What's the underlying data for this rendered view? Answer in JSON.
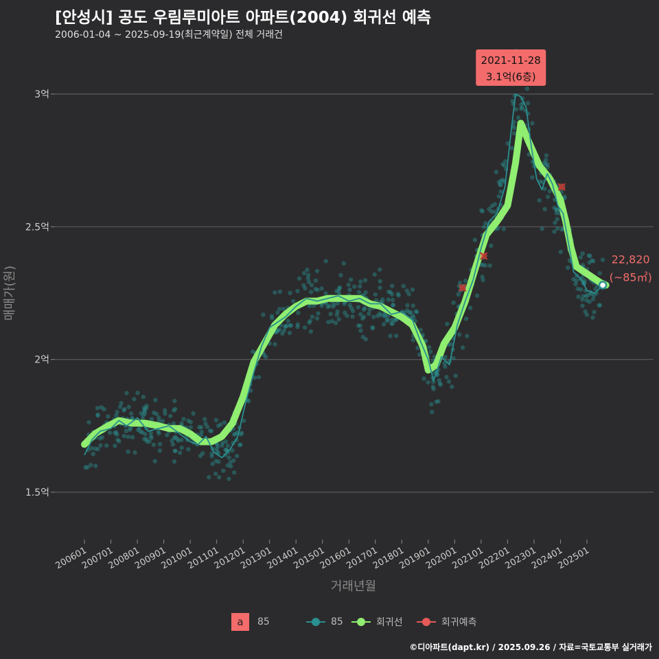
{
  "header": {
    "title": "[안성시] 공도 우림루미아트 아파트(2004) 회귀선 예측",
    "subtitle": "2006-01-04 ~ 2025-09-19(최근계약일) 전체 거래건"
  },
  "footer": "©디아파트(dapt.kr) / 2025.09.26 / 자료=국토교통부 실거래가",
  "legend": {
    "fill_label": "a",
    "fill_text": "85",
    "items": [
      {
        "label": "85",
        "color": "#2a8f8f"
      },
      {
        "label": "회귀선",
        "color": "#90ee70"
      },
      {
        "label": "회귀예측",
        "color": "#e85a5a"
      }
    ]
  },
  "chart_data": {
    "type": "scatter",
    "title": "[안성시] 공도 우림루미아트 아파트(2004) 회귀선 예측",
    "xlabel": "거래년월",
    "ylabel": "매매가(원)",
    "x_ticks": [
      "200601",
      "200701",
      "200801",
      "200901",
      "201001",
      "201101",
      "201201",
      "201301",
      "201401",
      "201501",
      "201601",
      "201701",
      "201801",
      "201901",
      "202001",
      "202101",
      "202201",
      "202301",
      "202401",
      "202501"
    ],
    "y_ticks": [
      {
        "value": 1.5,
        "label": "1.5억"
      },
      {
        "value": 2.0,
        "label": "2억"
      },
      {
        "value": 2.5,
        "label": "2.5억"
      },
      {
        "value": 3.0,
        "label": "3억"
      }
    ],
    "xlim": [
      2005.75,
      2025.95
    ],
    "ylim": [
      1.3,
      3.2
    ],
    "grid": "horizontal",
    "legend_position": "bottom",
    "series": [
      {
        "name": "회귀선",
        "color": "#90ee70",
        "points": [
          [
            2006.0,
            1.68
          ],
          [
            2006.4,
            1.72
          ],
          [
            2006.9,
            1.75
          ],
          [
            2007.3,
            1.77
          ],
          [
            2007.8,
            1.76
          ],
          [
            2008.3,
            1.76
          ],
          [
            2008.8,
            1.75
          ],
          [
            2009.2,
            1.74
          ],
          [
            2009.6,
            1.74
          ],
          [
            2010.0,
            1.72
          ],
          [
            2010.4,
            1.69
          ],
          [
            2010.8,
            1.69
          ],
          [
            2011.2,
            1.71
          ],
          [
            2011.6,
            1.76
          ],
          [
            2012.0,
            1.86
          ],
          [
            2012.4,
            1.99
          ],
          [
            2012.8,
            2.06
          ],
          [
            2013.2,
            2.13
          ],
          [
            2013.6,
            2.17
          ],
          [
            2014.0,
            2.2
          ],
          [
            2014.4,
            2.22
          ],
          [
            2014.8,
            2.22
          ],
          [
            2015.2,
            2.23
          ],
          [
            2015.6,
            2.23
          ],
          [
            2016.0,
            2.23
          ],
          [
            2016.4,
            2.23
          ],
          [
            2016.8,
            2.21
          ],
          [
            2017.2,
            2.2
          ],
          [
            2017.6,
            2.18
          ],
          [
            2018.0,
            2.16
          ],
          [
            2018.4,
            2.13
          ],
          [
            2018.8,
            2.05
          ],
          [
            2019.0,
            1.96
          ],
          [
            2019.3,
            1.98
          ],
          [
            2019.6,
            2.06
          ],
          [
            2020.0,
            2.12
          ],
          [
            2020.4,
            2.22
          ],
          [
            2020.8,
            2.35
          ],
          [
            2021.2,
            2.47
          ],
          [
            2021.6,
            2.52
          ],
          [
            2022.0,
            2.58
          ],
          [
            2022.3,
            2.74
          ],
          [
            2022.5,
            2.89
          ],
          [
            2022.8,
            2.82
          ],
          [
            2023.2,
            2.73
          ],
          [
            2023.6,
            2.68
          ],
          [
            2024.0,
            2.6
          ],
          [
            2024.2,
            2.52
          ],
          [
            2024.4,
            2.42
          ],
          [
            2024.6,
            2.35
          ],
          [
            2024.9,
            2.33
          ],
          [
            2025.2,
            2.31
          ],
          [
            2025.5,
            2.29
          ],
          [
            2025.72,
            2.28
          ]
        ]
      },
      {
        "name": "85",
        "color": "#2a8f8f",
        "points": [
          [
            2006.0,
            1.64
          ],
          [
            2006.3,
            1.7
          ],
          [
            2006.6,
            1.73
          ],
          [
            2007.0,
            1.74
          ],
          [
            2007.3,
            1.77
          ],
          [
            2007.6,
            1.75
          ],
          [
            2008.0,
            1.78
          ],
          [
            2008.4,
            1.73
          ],
          [
            2008.8,
            1.74
          ],
          [
            2009.2,
            1.75
          ],
          [
            2009.6,
            1.72
          ],
          [
            2010.0,
            1.69
          ],
          [
            2010.3,
            1.68
          ],
          [
            2010.6,
            1.71
          ],
          [
            2010.9,
            1.65
          ],
          [
            2011.2,
            1.63
          ],
          [
            2011.5,
            1.66
          ],
          [
            2011.8,
            1.71
          ],
          [
            2012.1,
            1.84
          ],
          [
            2012.4,
            1.95
          ],
          [
            2012.7,
            2.05
          ],
          [
            2013.0,
            2.12
          ],
          [
            2013.3,
            2.14
          ],
          [
            2013.6,
            2.16
          ],
          [
            2014.0,
            2.2
          ],
          [
            2014.4,
            2.23
          ],
          [
            2014.8,
            2.22
          ],
          [
            2015.2,
            2.23
          ],
          [
            2015.6,
            2.24
          ],
          [
            2016.0,
            2.22
          ],
          [
            2016.4,
            2.23
          ],
          [
            2016.8,
            2.21
          ],
          [
            2017.2,
            2.21
          ],
          [
            2017.6,
            2.17
          ],
          [
            2018.0,
            2.18
          ],
          [
            2018.4,
            2.15
          ],
          [
            2018.7,
            2.07
          ],
          [
            2019.0,
            2.0
          ],
          [
            2019.2,
            1.92
          ],
          [
            2019.5,
            2.01
          ],
          [
            2019.8,
            1.98
          ],
          [
            2020.1,
            2.13
          ],
          [
            2020.4,
            2.22
          ],
          [
            2020.7,
            2.3
          ],
          [
            2021.0,
            2.42
          ],
          [
            2021.3,
            2.52
          ],
          [
            2021.6,
            2.55
          ],
          [
            2021.9,
            2.65
          ],
          [
            2022.1,
            2.83
          ],
          [
            2022.3,
            3.0
          ],
          [
            2022.5,
            2.99
          ],
          [
            2022.7,
            2.95
          ],
          [
            2022.9,
            2.8
          ],
          [
            2023.1,
            2.68
          ],
          [
            2023.3,
            2.64
          ],
          [
            2023.5,
            2.7
          ],
          [
            2023.7,
            2.66
          ],
          [
            2023.9,
            2.58
          ],
          [
            2024.1,
            2.55
          ],
          [
            2024.3,
            2.44
          ],
          [
            2024.5,
            2.33
          ],
          [
            2024.8,
            2.3
          ],
          [
            2025.0,
            2.26
          ],
          [
            2025.3,
            2.25
          ],
          [
            2025.5,
            2.27
          ],
          [
            2025.72,
            2.28
          ]
        ]
      }
    ],
    "prediction_points": [
      [
        2020.3,
        2.27
      ],
      [
        2021.1,
        2.39
      ],
      [
        2024.05,
        2.65
      ],
      [
        2025.6,
        2.28
      ]
    ],
    "callouts": [
      {
        "name": "peak-callout",
        "date": "2021-11-28",
        "text": "3.1억(6층)",
        "x": 2022.1,
        "y": 3.1
      },
      {
        "name": "latest-callout",
        "value_text": "22,820",
        "unit_text": "(~85㎡)",
        "x": 2025.72,
        "y": 2.28
      }
    ],
    "scatter_note": "individual transactions, 85 group, scattered around the 85 line"
  }
}
